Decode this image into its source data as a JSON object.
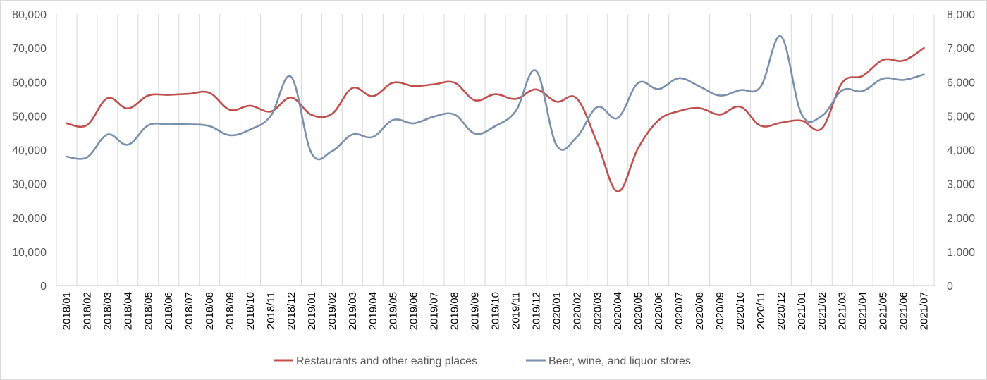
{
  "chart_data": {
    "type": "line",
    "title": "",
    "xlabel": "",
    "ylabel": "",
    "x": [
      "2018/01",
      "2018/02",
      "2018/03",
      "2018/04",
      "2018/05",
      "2018/06",
      "2018/07",
      "2018/08",
      "2018/09",
      "2018/10",
      "2018/11",
      "2018/12",
      "2019/01",
      "2019/02",
      "2019/03",
      "2019/04",
      "2019/05",
      "2019/06",
      "2019/07",
      "2019/08",
      "2019/09",
      "2019/10",
      "2019/11",
      "2019/12",
      "2020/01",
      "2020/02",
      "2020/03",
      "2020/04",
      "2020/05",
      "2020/06",
      "2020/07",
      "2020/08",
      "2020/09",
      "2020/10",
      "2020/11",
      "2020/12",
      "2021/01",
      "2021/02",
      "2021/03",
      "2021/04",
      "2021/05",
      "2021/06",
      "2021/07"
    ],
    "y_left": {
      "lim": [
        0,
        80000
      ],
      "ticks": [
        "0",
        "10,000",
        "20,000",
        "30,000",
        "40,000",
        "50,000",
        "60,000",
        "70,000",
        "80,000"
      ]
    },
    "y_right": {
      "lim": [
        0,
        8000
      ],
      "ticks": [
        "0",
        "1,000",
        "2,000",
        "3,000",
        "4,000",
        "5,000",
        "6,000",
        "7,000",
        "8,000"
      ]
    },
    "grid": "vertical",
    "legend_position": "bottom",
    "series": [
      {
        "name": "Restaurants and other eating places",
        "color": "#c0504d",
        "axis": "left",
        "values": [
          47800,
          47300,
          55200,
          52200,
          56000,
          56200,
          56500,
          56800,
          51800,
          53000,
          51300,
          55400,
          50300,
          50600,
          58200,
          55800,
          59800,
          58800,
          59300,
          59800,
          54600,
          56400,
          55000,
          57800,
          54200,
          55100,
          42000,
          27700,
          40500,
          48700,
          51400,
          52300,
          50400,
          52700,
          47100,
          48000,
          48600,
          46300,
          59800,
          61800,
          66500,
          66300,
          70000
        ]
      },
      {
        "name": "Beer, wine, and liquor stores",
        "color": "#7a8fad",
        "axis": "right",
        "values": [
          3800,
          3780,
          4450,
          4150,
          4720,
          4750,
          4750,
          4700,
          4430,
          4600,
          5000,
          6150,
          3900,
          3960,
          4450,
          4380,
          4880,
          4780,
          4980,
          5040,
          4480,
          4700,
          5140,
          6330,
          4140,
          4380,
          5260,
          4940,
          5970,
          5790,
          6110,
          5870,
          5600,
          5760,
          5860,
          7340,
          5060,
          5000,
          5750,
          5730,
          6100,
          6060,
          6220
        ]
      }
    ]
  }
}
